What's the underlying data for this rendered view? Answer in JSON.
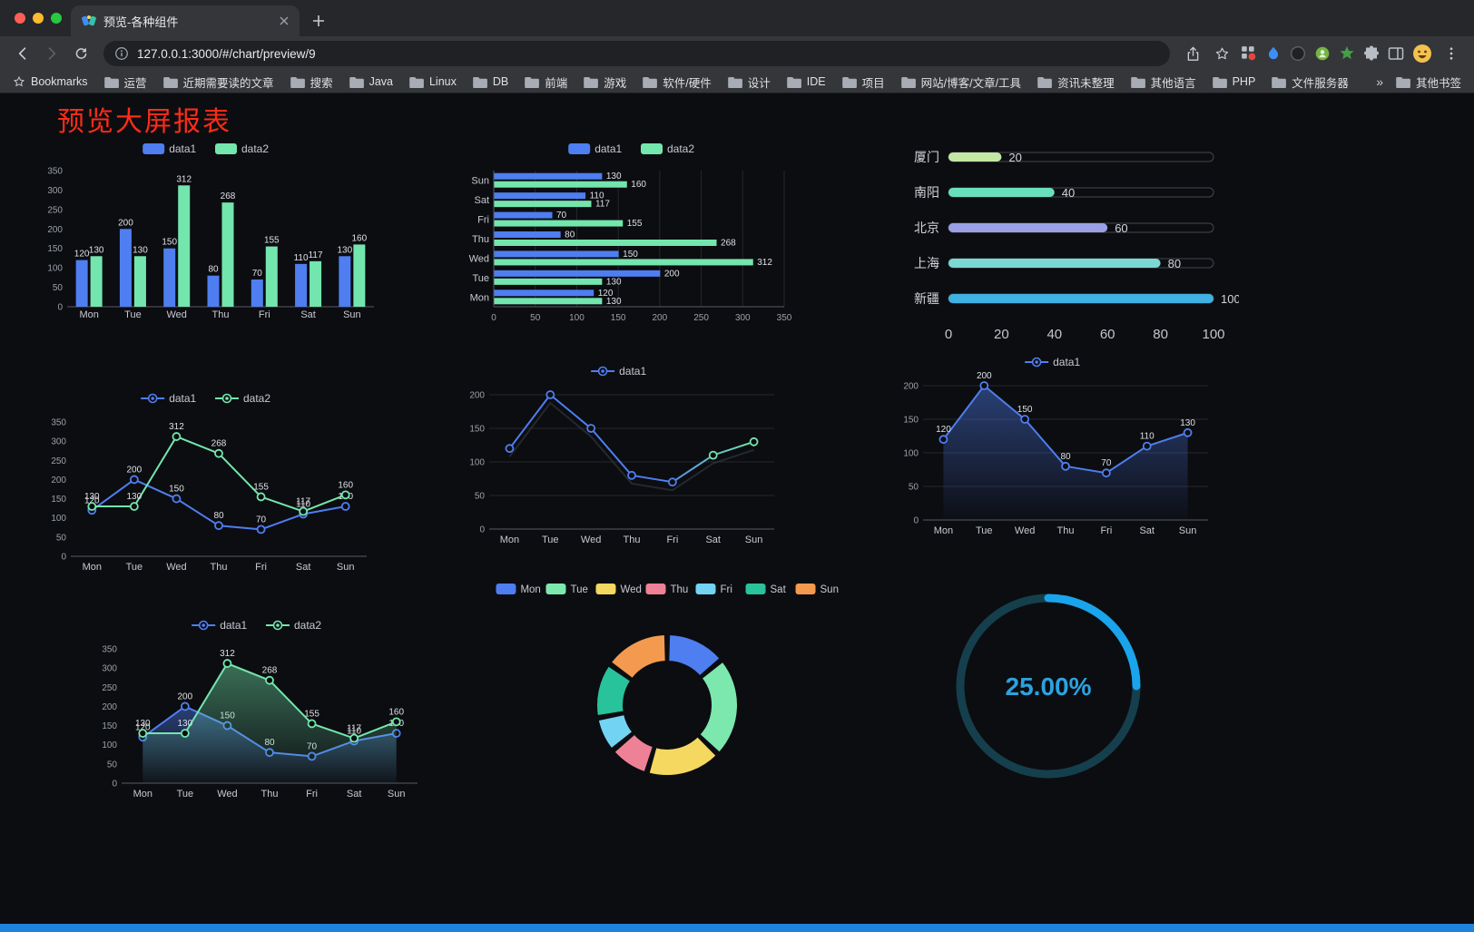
{
  "browser": {
    "tab": {
      "title": "预览-各种组件"
    },
    "address": {
      "url": "127.0.0.1:3000/#/chart/preview/9"
    },
    "toolbar_icons": [
      "back-icon",
      "forward-icon",
      "reload-icon",
      "info-icon",
      "share-icon",
      "bookmark-star-icon",
      "extensions-grid-icon",
      "blue-extension-icon",
      "dark-extension-icon",
      "green-extension-icon",
      "green-star-extension-icon",
      "puzzle-icon",
      "sidebar-icon",
      "profile-avatar",
      "menu-icon"
    ]
  },
  "bookmarks": {
    "label": "Bookmarks",
    "items": [
      "运营",
      "近期需要读的文章",
      "搜索",
      "Java",
      "Linux",
      "DB",
      "前端",
      "游戏",
      "软件/硬件",
      "设计",
      "IDE",
      "项目",
      "网站/博客/文章/工具",
      "资讯未整理",
      "其他语言",
      "PHP",
      "文件服务器"
    ],
    "overflow": "»",
    "other_label": "其他书签"
  },
  "page": {
    "title": "预览大屏报表"
  },
  "theme": {
    "page_bg": "#0c0d11",
    "accent_blue": "#4e7ef0",
    "accent_green": "#73e6ad",
    "title_red": "#fb2c18",
    "footer_blue": "#1f82dd"
  },
  "chart_data": [
    {
      "id": "bar-vertical",
      "type": "bar",
      "variant": "vertical",
      "categories": [
        "Mon",
        "Tue",
        "Wed",
        "Thu",
        "Fri",
        "Sat",
        "Sun"
      ],
      "series": [
        {
          "name": "data1",
          "color": "#4e7ef0",
          "values": [
            120,
            200,
            150,
            80,
            70,
            110,
            130
          ]
        },
        {
          "name": "data2",
          "color": "#73e6ad",
          "values": [
            130,
            130,
            312,
            268,
            155,
            117,
            160
          ]
        }
      ],
      "ylim": [
        0,
        350
      ],
      "ytick_step": 50,
      "legend_position": "top",
      "value_labels": true
    },
    {
      "id": "bar-horizontal",
      "type": "bar",
      "variant": "horizontal",
      "categories": [
        "Mon",
        "Tue",
        "Wed",
        "Thu",
        "Fri",
        "Sat",
        "Sun"
      ],
      "series": [
        {
          "name": "data1",
          "color": "#4e7ef0",
          "values": [
            120,
            200,
            150,
            80,
            70,
            110,
            130
          ]
        },
        {
          "name": "data2",
          "color": "#73e6ad",
          "values": [
            130,
            130,
            312,
            268,
            155,
            117,
            160
          ]
        }
      ],
      "xlim": [
        0,
        350
      ],
      "xtick_step": 50,
      "legend_position": "top",
      "value_labels": true,
      "grid": true
    },
    {
      "id": "progress-bars",
      "type": "bar",
      "variant": "progress",
      "categories": [
        "厦门",
        "南阳",
        "北京",
        "上海",
        "新疆"
      ],
      "values": [
        20,
        40,
        60,
        80,
        100
      ],
      "colors": [
        "#c3e8a4",
        "#69e0bc",
        "#9aa0e5",
        "#7cd8d3",
        "#3fb1e3"
      ],
      "xlim": [
        0,
        100
      ],
      "xticks": [
        0,
        20,
        40,
        60,
        80,
        100
      ],
      "value_labels": true
    },
    {
      "id": "line-two-series",
      "type": "line",
      "variant": "multi",
      "categories": [
        "Mon",
        "Tue",
        "Wed",
        "Thu",
        "Fri",
        "Sat",
        "Sun"
      ],
      "series": [
        {
          "name": "data1",
          "color": "#4e7ef0",
          "values": [
            120,
            200,
            150,
            80,
            70,
            110,
            130
          ],
          "labels": true
        },
        {
          "name": "data2",
          "color": "#73e6ad",
          "values": [
            130,
            130,
            312,
            268,
            155,
            117,
            160
          ],
          "labels": true
        }
      ],
      "ylim": [
        0,
        350
      ],
      "ytick_step": 50,
      "legend_position": "top",
      "grid": false
    },
    {
      "id": "line-gradient",
      "type": "line",
      "variant": "gradient",
      "categories": [
        "Mon",
        "Tue",
        "Wed",
        "Thu",
        "Fri",
        "Sat",
        "Sun"
      ],
      "series": [
        {
          "name": "data1",
          "color": "#4e7ef0",
          "color_end": "#73e6ad",
          "values": [
            120,
            200,
            150,
            80,
            70,
            110,
            130
          ],
          "labels": false,
          "shadow": true
        }
      ],
      "ylim": [
        0,
        200
      ],
      "ytick_step": 50,
      "legend_position": "top",
      "grid": true
    },
    {
      "id": "line-area",
      "type": "line",
      "variant": "area",
      "categories": [
        "Mon",
        "Tue",
        "Wed",
        "Thu",
        "Fri",
        "Sat",
        "Sun"
      ],
      "series": [
        {
          "name": "data1",
          "color": "#4e7ef0",
          "values": [
            120,
            200,
            150,
            80,
            70,
            110,
            130
          ],
          "labels": true,
          "area": true
        }
      ],
      "ylim": [
        0,
        200
      ],
      "ytick_step": 50,
      "legend_position": "top",
      "grid": true
    },
    {
      "id": "line-two-series-area",
      "type": "line",
      "variant": "multi-area",
      "categories": [
        "Mon",
        "Tue",
        "Wed",
        "Thu",
        "Fri",
        "Sat",
        "Sun"
      ],
      "series": [
        {
          "name": "data1",
          "color": "#4e7ef0",
          "values": [
            120,
            200,
            150,
            80,
            70,
            110,
            130
          ],
          "labels": true,
          "area": true
        },
        {
          "name": "data2",
          "color": "#73e6ad",
          "values": [
            130,
            130,
            312,
            268,
            155,
            117,
            160
          ],
          "labels": true,
          "area": true
        }
      ],
      "ylim": [
        0,
        350
      ],
      "ytick_step": 50,
      "legend_position": "top",
      "grid": false
    },
    {
      "id": "doughnut",
      "type": "pie",
      "variant": "doughnut",
      "categories": [
        "Mon",
        "Tue",
        "Wed",
        "Thu",
        "Fri",
        "Sat",
        "Sun"
      ],
      "values": [
        120,
        200,
        150,
        80,
        70,
        110,
        130
      ],
      "colors": [
        "#4e7ef0",
        "#7ce8ae",
        "#f5d85f",
        "#ef8196",
        "#73d3f2",
        "#28c29b",
        "#f49a4f"
      ],
      "legend_position": "top"
    },
    {
      "id": "gauge-ring",
      "type": "gauge",
      "variant": "ring",
      "value": 25,
      "label": "25.00%",
      "color": "#1aa4ec",
      "track_color": "#153f4d",
      "text_color": "#2ba3e0"
    }
  ]
}
